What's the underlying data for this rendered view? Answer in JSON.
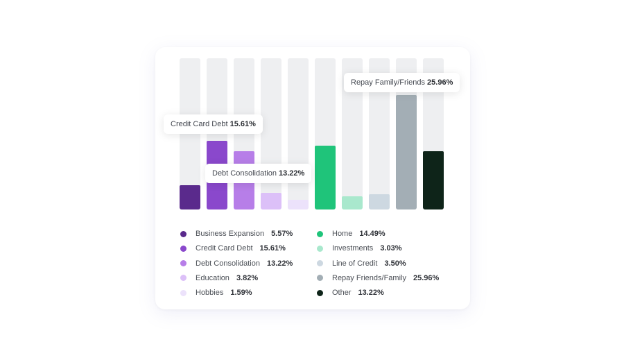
{
  "chart_data": {
    "type": "bar",
    "ylim": [
      0,
      100
    ],
    "categories": [
      "Business Expansion",
      "Credit Card Debt",
      "Debt Consolidation",
      "Education",
      "Hobbies",
      "Home",
      "Investments",
      "Line of Credit",
      "Repay Friends/Family",
      "Other"
    ],
    "values": [
      5.57,
      15.61,
      13.22,
      3.82,
      1.59,
      14.49,
      3.03,
      3.5,
      25.96,
      13.22
    ],
    "colors": [
      "#5a2a8c",
      "#8a48cc",
      "#b77ee8",
      "#dcc0f8",
      "#ece2fb",
      "#1fc47a",
      "#a9e8cd",
      "#cdd8e1",
      "#a3aeb5",
      "#0e2419"
    ],
    "legend": [
      {
        "label": "Business Expansion",
        "value": "5.57%",
        "color": "#5a2a8c"
      },
      {
        "label": "Credit Card Debt",
        "value": "15.61%",
        "color": "#8a48cc"
      },
      {
        "label": "Debt Consolidation",
        "value": "13.22%",
        "color": "#b77ee8"
      },
      {
        "label": "Education",
        "value": "3.82%",
        "color": "#dcc0f8"
      },
      {
        "label": "Hobbies",
        "value": "1.59%",
        "color": "#ece2fb"
      },
      {
        "label": "Home",
        "value": "14.49%",
        "color": "#1fc47a"
      },
      {
        "label": "Investments",
        "value": "3.03%",
        "color": "#a9e8cd"
      },
      {
        "label": "Line of Credit",
        "value": "3.50%",
        "color": "#cdd8e1"
      },
      {
        "label": "Repay Friends/Family",
        "value": "25.96%",
        "color": "#a3aeb5"
      },
      {
        "label": "Other",
        "value": "13.22%",
        "color": "#0e2419"
      }
    ],
    "tooltips": [
      {
        "label": "Credit Card Debt",
        "value": "15.61%"
      },
      {
        "label": "Debt Consolidation",
        "value": "13.22%"
      },
      {
        "label": "Repay Family/Friends",
        "value": "25.96%"
      }
    ]
  }
}
